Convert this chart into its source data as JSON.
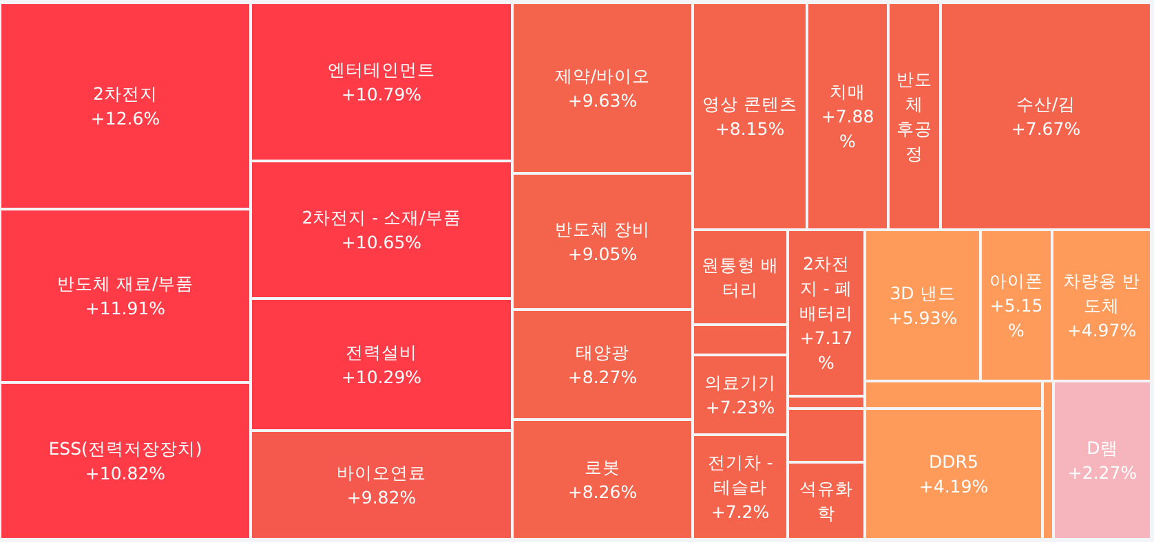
{
  "chart_data": {
    "type": "other",
    "categories": [
      "2차전지",
      "반도체 재료/부품",
      "ESS(전력저장장치)",
      "엔터테인먼트",
      "2차전지 - 소재/부품",
      "전력설비",
      "바이오연료",
      "제약/바이오",
      "반도체 장비",
      "태양광",
      "로봇",
      "영상 콘텐츠",
      "치매",
      "반도체 후공정",
      "수산/김",
      "원통형 배터리",
      null,
      "의료기기",
      "전기차 - 테슬라",
      "2차전지 - 폐배터리",
      null,
      null,
      "석유화학",
      "3D 낸드",
      "아이폰",
      "차량용 반도체",
      null,
      "DDR5",
      null,
      "D램"
    ],
    "values": [
      12.6,
      11.91,
      10.82,
      10.79,
      10.65,
      10.29,
      9.82,
      9.63,
      9.05,
      8.27,
      8.26,
      8.15,
      7.88,
      null,
      7.67,
      null,
      null,
      7.23,
      7.2,
      7.17,
      null,
      null,
      null,
      5.93,
      5.15,
      4.97,
      null,
      4.19,
      null,
      2.27
    ],
    "value_labels": [
      "+12.6%",
      "+11.91%",
      "+10.82%",
      "+10.79%",
      "+10.65%",
      "+10.29%",
      "+9.82%",
      "+9.63%",
      "+9.05%",
      "+8.27%",
      "+8.26%",
      "+8.15%",
      "+7.88%",
      null,
      "+7.67%",
      null,
      null,
      "+7.23%",
      "+7.2%",
      "+7.17%",
      null,
      null,
      null,
      "+5.93%",
      "+5.15%",
      "+4.97%",
      null,
      "+4.19%",
      null,
      "+2.27%"
    ],
    "colors": [
      "#ff3b47",
      "#ff3b47",
      "#ff3b47",
      "#ff3b47",
      "#ff3b47",
      "#ff3b47",
      "#f5594d",
      "#f4634c",
      "#f4634c",
      "#f4634c",
      "#f4634c",
      "#f4634c",
      "#f4634c",
      "#f4634c",
      "#f4634c",
      "#f4634c",
      "#f4634c",
      "#f4634c",
      "#f4634c",
      "#f4634c",
      "#f4634c",
      "#f4634c",
      "#f4634c",
      "#fe9a5a",
      "#fe9a5a",
      "#fe9a5a",
      "#fe9a5a",
      "#fe9a5a",
      "#fe9a5a",
      "#f6b4bc"
    ]
  }
}
